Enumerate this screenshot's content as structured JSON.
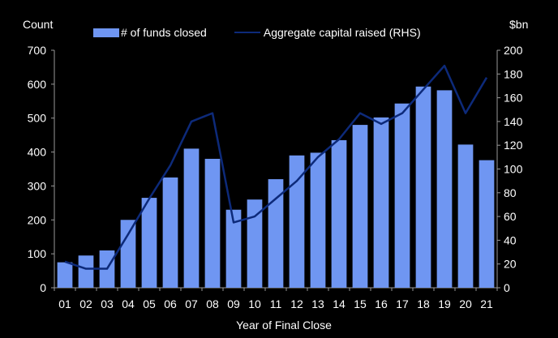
{
  "chart_data": {
    "type": "bar",
    "xlabel": "Year of Final Close",
    "ylabel_left": "Count",
    "ylabel_right": "$bn",
    "categories": [
      "01",
      "02",
      "03",
      "04",
      "05",
      "06",
      "07",
      "08",
      "09",
      "10",
      "11",
      "12",
      "13",
      "14",
      "15",
      "16",
      "17",
      "18",
      "19",
      "20",
      "21"
    ],
    "ylim_left": [
      0,
      700
    ],
    "yticks_left": [
      0,
      100,
      200,
      300,
      400,
      500,
      600,
      700
    ],
    "ylim_right": [
      0,
      200
    ],
    "yticks_right": [
      0,
      20,
      40,
      60,
      80,
      100,
      120,
      140,
      160,
      180,
      200
    ],
    "legend_position": "top",
    "series": [
      {
        "name": "# of funds closed",
        "type": "bar",
        "axis": "left",
        "color": "#6f96f2",
        "values": [
          75,
          95,
          110,
          200,
          265,
          325,
          410,
          380,
          230,
          260,
          320,
          390,
          398,
          435,
          480,
          502,
          543,
          593,
          582,
          422,
          376
        ]
      },
      {
        "name": "Aggregate capital raised (RHS)",
        "type": "line",
        "axis": "right",
        "color": "#0d2a7a",
        "values": [
          22,
          16,
          16,
          45,
          75,
          103,
          140,
          147,
          55,
          60,
          75,
          90,
          110,
          125,
          147,
          138,
          147,
          167,
          187,
          147,
          177
        ]
      }
    ]
  }
}
